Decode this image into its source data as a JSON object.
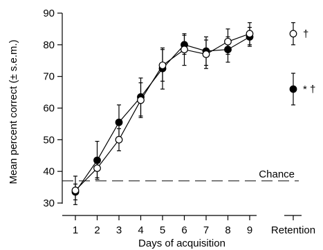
{
  "chart_data": {
    "type": "line",
    "xlabel": "Days of acquisition",
    "ylabel": "Mean percent correct (± s.e.m.)",
    "x": [
      1,
      2,
      3,
      4,
      5,
      6,
      7,
      8,
      9
    ],
    "x_tick_labels": [
      "1",
      "2",
      "3",
      "4",
      "5",
      "6",
      "7",
      "8",
      "9"
    ],
    "retention_tick_label": "Retention",
    "ylim": [
      30,
      90
    ],
    "y_ticks": [
      30,
      40,
      50,
      60,
      70,
      80,
      90
    ],
    "y_tick_labels": [
      "30",
      "40",
      "50",
      "60",
      "70",
      "80",
      "90"
    ],
    "chance": {
      "value": 37,
      "label": "Chance"
    },
    "series": [
      {
        "marker": "filled",
        "values": [
          33.5,
          43.5,
          55.5,
          63.5,
          72.5,
          80,
          78,
          78.5,
          82.5
        ],
        "errors": [
          2.5,
          6,
          5.5,
          6,
          6.5,
          3,
          4.5,
          4,
          3
        ],
        "retention": {
          "value": 66,
          "error": 5,
          "annotation": "* †"
        }
      },
      {
        "marker": "open",
        "values": [
          34,
          41,
          50,
          62.5,
          73.5,
          78.5,
          77,
          81,
          83.5
        ],
        "errors": [
          4.5,
          3,
          3.5,
          5.5,
          5,
          5,
          4.5,
          4,
          3.5
        ],
        "retention": {
          "value": 83.5,
          "error": 3.5,
          "annotation": "†"
        }
      }
    ],
    "grid": false,
    "legend": "none"
  }
}
